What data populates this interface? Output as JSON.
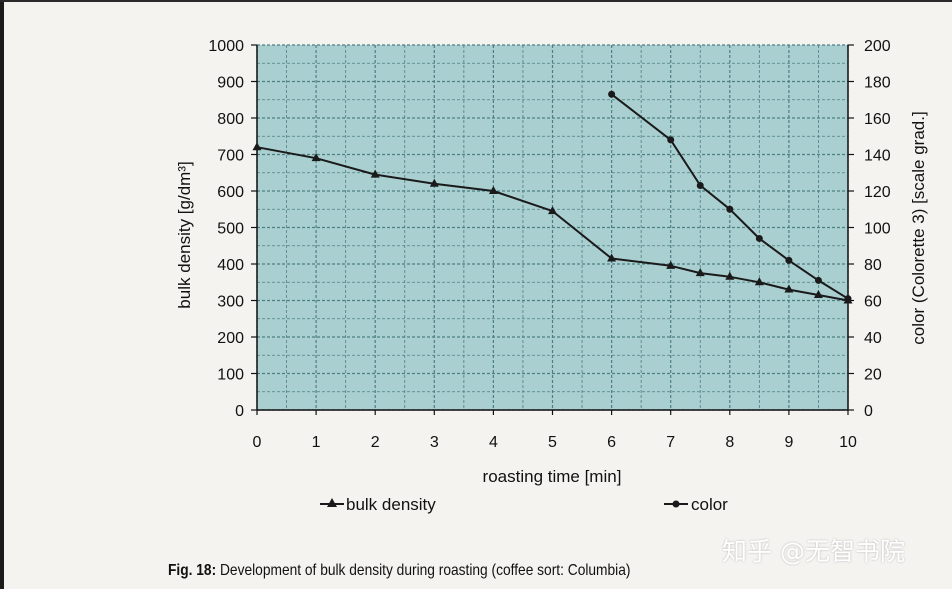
{
  "chart_data": {
    "type": "line",
    "title": "",
    "xlabel": "roasting time [min]",
    "ylabel_left": "bulk density [g/dm³]",
    "ylabel_right": "color (Colorette 3) [scale grad.]",
    "xlim": [
      0,
      10
    ],
    "ylim_left": [
      0,
      1000
    ],
    "ylim_right": [
      0,
      200
    ],
    "x_ticks": [
      "0",
      "1",
      "2",
      "3",
      "4",
      "5",
      "6",
      "7",
      "8",
      "9",
      "10"
    ],
    "y_ticks_left": [
      "0",
      "100",
      "200",
      "300",
      "400",
      "500",
      "600",
      "700",
      "800",
      "900",
      "1000"
    ],
    "y_ticks_right": [
      "0",
      "20",
      "40",
      "60",
      "80",
      "100",
      "120",
      "140",
      "160",
      "180",
      "200"
    ],
    "grid": true,
    "series": [
      {
        "name": "bulk density",
        "axis": "left",
        "marker": "triangle",
        "x": [
          0,
          1,
          2,
          3,
          4,
          5,
          6,
          7,
          7.5,
          8,
          8.5,
          9,
          9.5,
          10
        ],
        "values": [
          720,
          690,
          645,
          620,
          600,
          545,
          415,
          395,
          375,
          365,
          350,
          330,
          315,
          300
        ]
      },
      {
        "name": "color",
        "axis": "right",
        "marker": "circle",
        "x": [
          6,
          7,
          7.5,
          8,
          8.5,
          9,
          9.5,
          10
        ],
        "values": [
          173,
          148,
          123,
          110,
          94,
          82,
          71,
          61
        ]
      }
    ],
    "legend": [
      "bulk density",
      "color"
    ],
    "legend_position": "bottom"
  },
  "caption": {
    "prefix": "Fig. 18:",
    "text": " Development of bulk density during roasting (coffee sort: Columbia)"
  },
  "watermark": "知乎 @无智书院",
  "colors": {
    "plot_bg": "#a9cfd0",
    "grid": "#4e7f83",
    "line": "#1a1a1a",
    "page_bg": "#f4f3f0"
  }
}
